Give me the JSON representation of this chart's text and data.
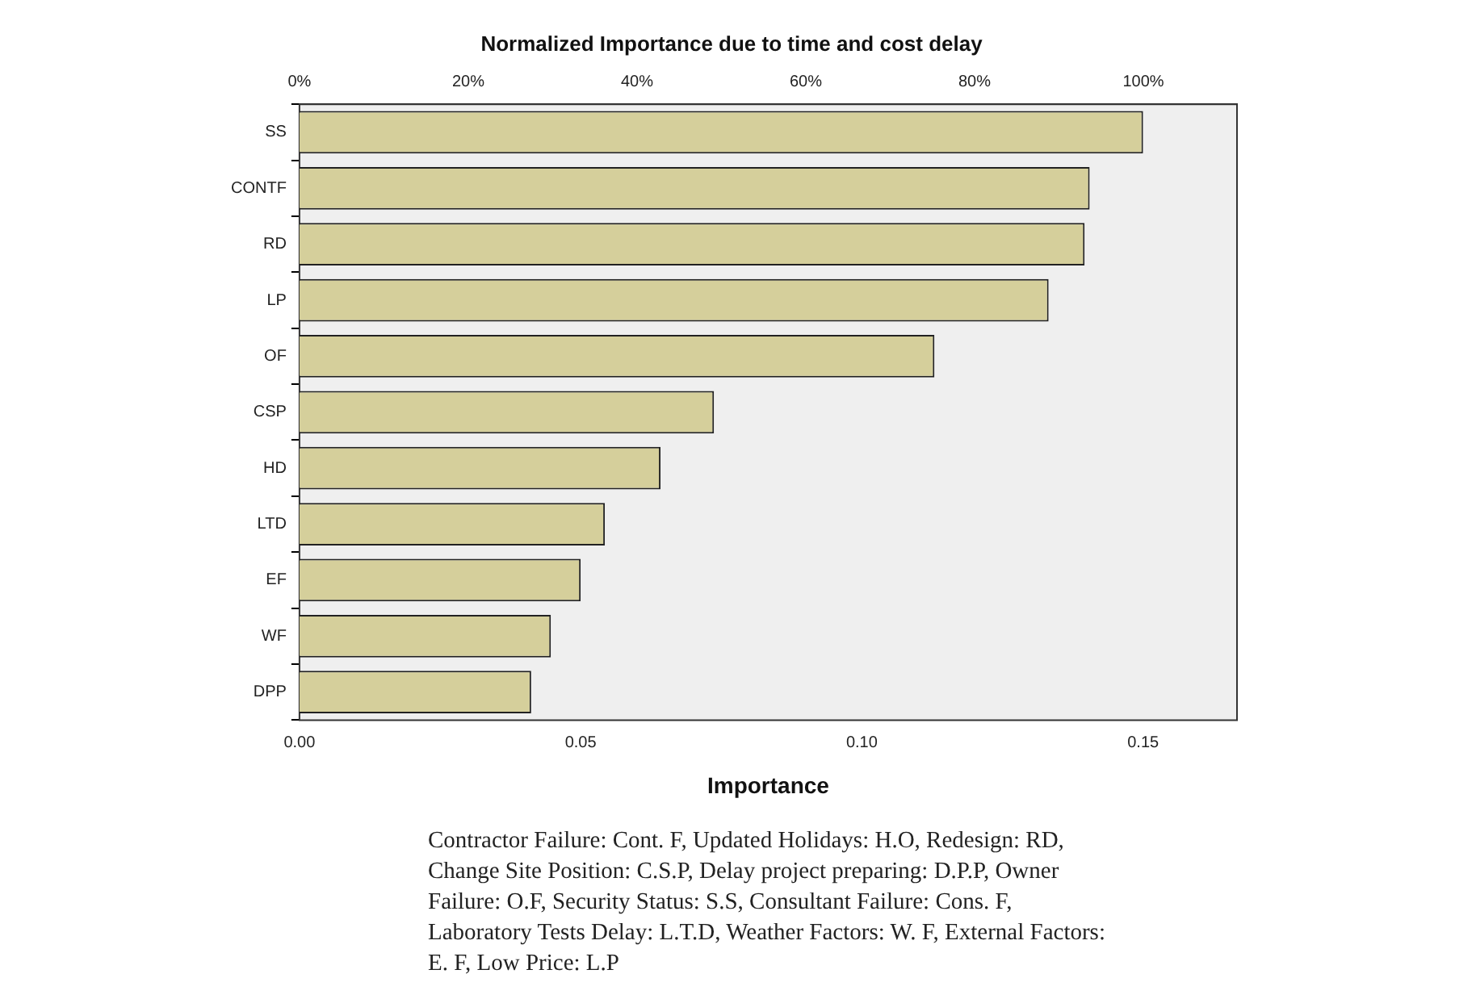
{
  "chart_data": {
    "type": "bar",
    "orientation": "horizontal",
    "title": "Normalized Importance due to time and cost delay",
    "xlabel": "Importance",
    "categories": [
      "SS",
      "CONTF",
      "RD",
      "LP",
      "OF",
      "CSP",
      "HD",
      "LTD",
      "EF",
      "WF",
      "DPP"
    ],
    "values": [
      0.15,
      0.1405,
      0.1396,
      0.1332,
      0.1129,
      0.0737,
      0.0642,
      0.0543,
      0.05,
      0.0447,
      0.0412
    ],
    "color": "#d5cf9b",
    "xlim": [
      0,
      0.1667
    ],
    "xticks": [
      {
        "value": 0,
        "label": "0.00"
      },
      {
        "value": 0.05,
        "label": "0.05"
      },
      {
        "value": 0.1,
        "label": "0.10"
      },
      {
        "value": 0.15,
        "label": "0.15"
      }
    ],
    "x2lim": [
      0,
      111.1
    ],
    "x2ticks": [
      {
        "value": 0,
        "label": "0%"
      },
      {
        "value": 20,
        "label": "20%"
      },
      {
        "value": 40,
        "label": "40%"
      },
      {
        "value": 60,
        "label": "60%"
      },
      {
        "value": 80,
        "label": "80%"
      },
      {
        "value": 100,
        "label": "100%"
      }
    ],
    "grid": false,
    "legend": false,
    "annotations": [
      "Contractor Failure: Cont. F, Updated Holidays: H.O, Redesign: RD, Change Site Position: C.S.P, Delay project preparing: D.P.P, Owner Failure: O.F, Security Status: S.S, Consultant Failure: Cons. F, Laboratory Tests Delay: L.T.D, Weather Factors: W. F, External Factors: E. F, Low Price: L.P"
    ]
  }
}
